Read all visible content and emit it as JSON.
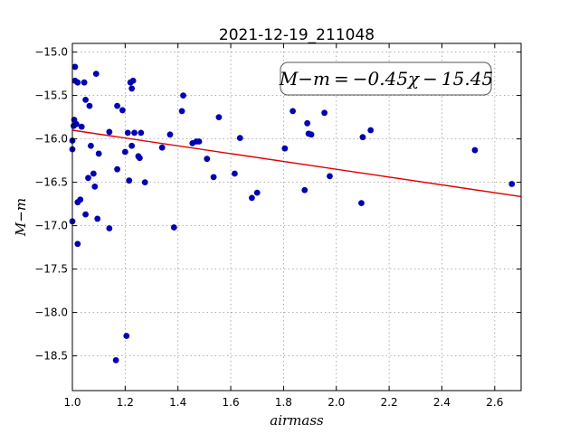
{
  "chart_data": {
    "type": "scatter",
    "title": "2021-12-19_211048",
    "xlabel": "airmass",
    "ylabel": "M−m",
    "xlim": [
      1.0,
      2.7
    ],
    "ylim": [
      -18.9,
      -14.9
    ],
    "x_ticks": [
      1.0,
      1.2,
      1.4,
      1.6,
      1.8,
      2.0,
      2.2,
      2.4,
      2.6
    ],
    "x_tick_labels": [
      "1.0",
      "1.2",
      "1.4",
      "1.6",
      "1.8",
      "2.0",
      "2.2",
      "2.4",
      "2.6"
    ],
    "y_ticks": [
      -15.0,
      -15.5,
      -16.0,
      -16.5,
      -17.0,
      -17.5,
      -18.0,
      -18.5
    ],
    "y_tick_labels": [
      "−15.0",
      "−15.5",
      "−16.0",
      "−16.5",
      "−17.0",
      "−17.5",
      "−18.0",
      "−18.5"
    ],
    "grid": true,
    "legend_placement": "top-right",
    "fit_label": "M−m = −0.45χ − 15.45",
    "fit": {
      "slope": -0.45,
      "intercept": -15.45,
      "color": "#e00000"
    },
    "marker_color": "#0000b4",
    "points": [
      [
        1.0,
        -16.02
      ],
      [
        1.0,
        -16.12
      ],
      [
        1.0,
        -16.95
      ],
      [
        1.005,
        -15.85
      ],
      [
        1.007,
        -15.78
      ],
      [
        1.01,
        -15.17
      ],
      [
        1.01,
        -15.33
      ],
      [
        1.015,
        -15.83
      ],
      [
        1.02,
        -15.35
      ],
      [
        1.02,
        -16.73
      ],
      [
        1.02,
        -17.21
      ],
      [
        1.03,
        -16.7
      ],
      [
        1.035,
        -15.86
      ],
      [
        1.045,
        -15.35
      ],
      [
        1.05,
        -15.55
      ],
      [
        1.05,
        -16.87
      ],
      [
        1.06,
        -16.45
      ],
      [
        1.065,
        -15.62
      ],
      [
        1.07,
        -16.08
      ],
      [
        1.08,
        -16.4
      ],
      [
        1.085,
        -16.55
      ],
      [
        1.09,
        -15.25
      ],
      [
        1.095,
        -16.92
      ],
      [
        1.1,
        -16.17
      ],
      [
        1.14,
        -15.92
      ],
      [
        1.14,
        -17.03
      ],
      [
        1.165,
        -18.55
      ],
      [
        1.17,
        -15.62
      ],
      [
        1.17,
        -16.35
      ],
      [
        1.19,
        -15.67
      ],
      [
        1.2,
        -16.15
      ],
      [
        1.205,
        -18.27
      ],
      [
        1.21,
        -15.93
      ],
      [
        1.215,
        -16.48
      ],
      [
        1.22,
        -15.35
      ],
      [
        1.225,
        -15.42
      ],
      [
        1.225,
        -16.08
      ],
      [
        1.23,
        -15.33
      ],
      [
        1.235,
        -15.93
      ],
      [
        1.25,
        -16.2
      ],
      [
        1.255,
        -16.22
      ],
      [
        1.26,
        -15.93
      ],
      [
        1.275,
        -16.5
      ],
      [
        1.34,
        -16.1
      ],
      [
        1.37,
        -15.95
      ],
      [
        1.385,
        -17.02
      ],
      [
        1.415,
        -15.68
      ],
      [
        1.42,
        -15.5
      ],
      [
        1.455,
        -16.05
      ],
      [
        1.47,
        -16.03
      ],
      [
        1.48,
        -16.03
      ],
      [
        1.51,
        -16.23
      ],
      [
        1.535,
        -16.44
      ],
      [
        1.555,
        -15.75
      ],
      [
        1.615,
        -16.4
      ],
      [
        1.635,
        -15.99
      ],
      [
        1.68,
        -16.68
      ],
      [
        1.7,
        -16.62
      ],
      [
        1.805,
        -16.11
      ],
      [
        1.835,
        -15.68
      ],
      [
        1.88,
        -16.59
      ],
      [
        1.89,
        -15.82
      ],
      [
        1.895,
        -15.94
      ],
      [
        1.905,
        -15.95
      ],
      [
        1.955,
        -15.7
      ],
      [
        1.975,
        -16.43
      ],
      [
        2.095,
        -16.74
      ],
      [
        2.1,
        -15.98
      ],
      [
        2.13,
        -15.9
      ],
      [
        2.525,
        -16.13
      ],
      [
        2.665,
        -16.52
      ]
    ]
  }
}
